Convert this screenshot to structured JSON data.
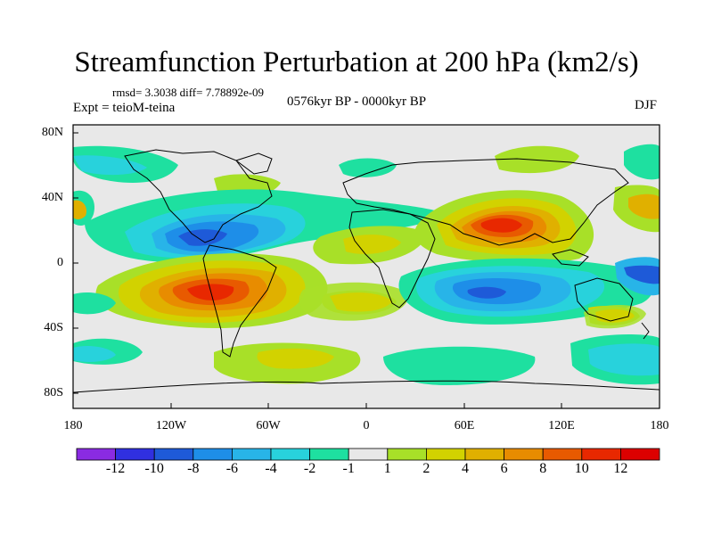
{
  "title": "Streamfunction Perturbation at 200 hPa (km2/s)",
  "stats": "rmsd= 3.3038 diff= 7.78892e-09",
  "experiment": "Expt = teioM-teina",
  "period": "0576kyr BP - 0000kyr BP",
  "season": "DJF",
  "y_axis_labels": [
    "80N",
    "40N",
    "0",
    "40S",
    "80S"
  ],
  "x_axis_labels": [
    "180",
    "120W",
    "60W",
    "0",
    "60E",
    "120E",
    "180"
  ],
  "colorbar": {
    "labels": [
      "-12",
      "-10",
      "-8",
      "-6",
      "-4",
      "-2",
      "-1",
      "1",
      "2",
      "4",
      "6",
      "8",
      "10",
      "12"
    ],
    "colors": [
      "#8a2be2",
      "#3030e0",
      "#1e5ad8",
      "#1e8ee8",
      "#28b4e8",
      "#28d2dc",
      "#1ee0a0",
      "#e8e8e8",
      "#a8e028",
      "#d2d200",
      "#e0b000",
      "#e88c00",
      "#e85a00",
      "#e82800",
      "#dc0000"
    ]
  },
  "colors": {
    "land_line": "#000000",
    "neutral": "#e8e8e8"
  }
}
